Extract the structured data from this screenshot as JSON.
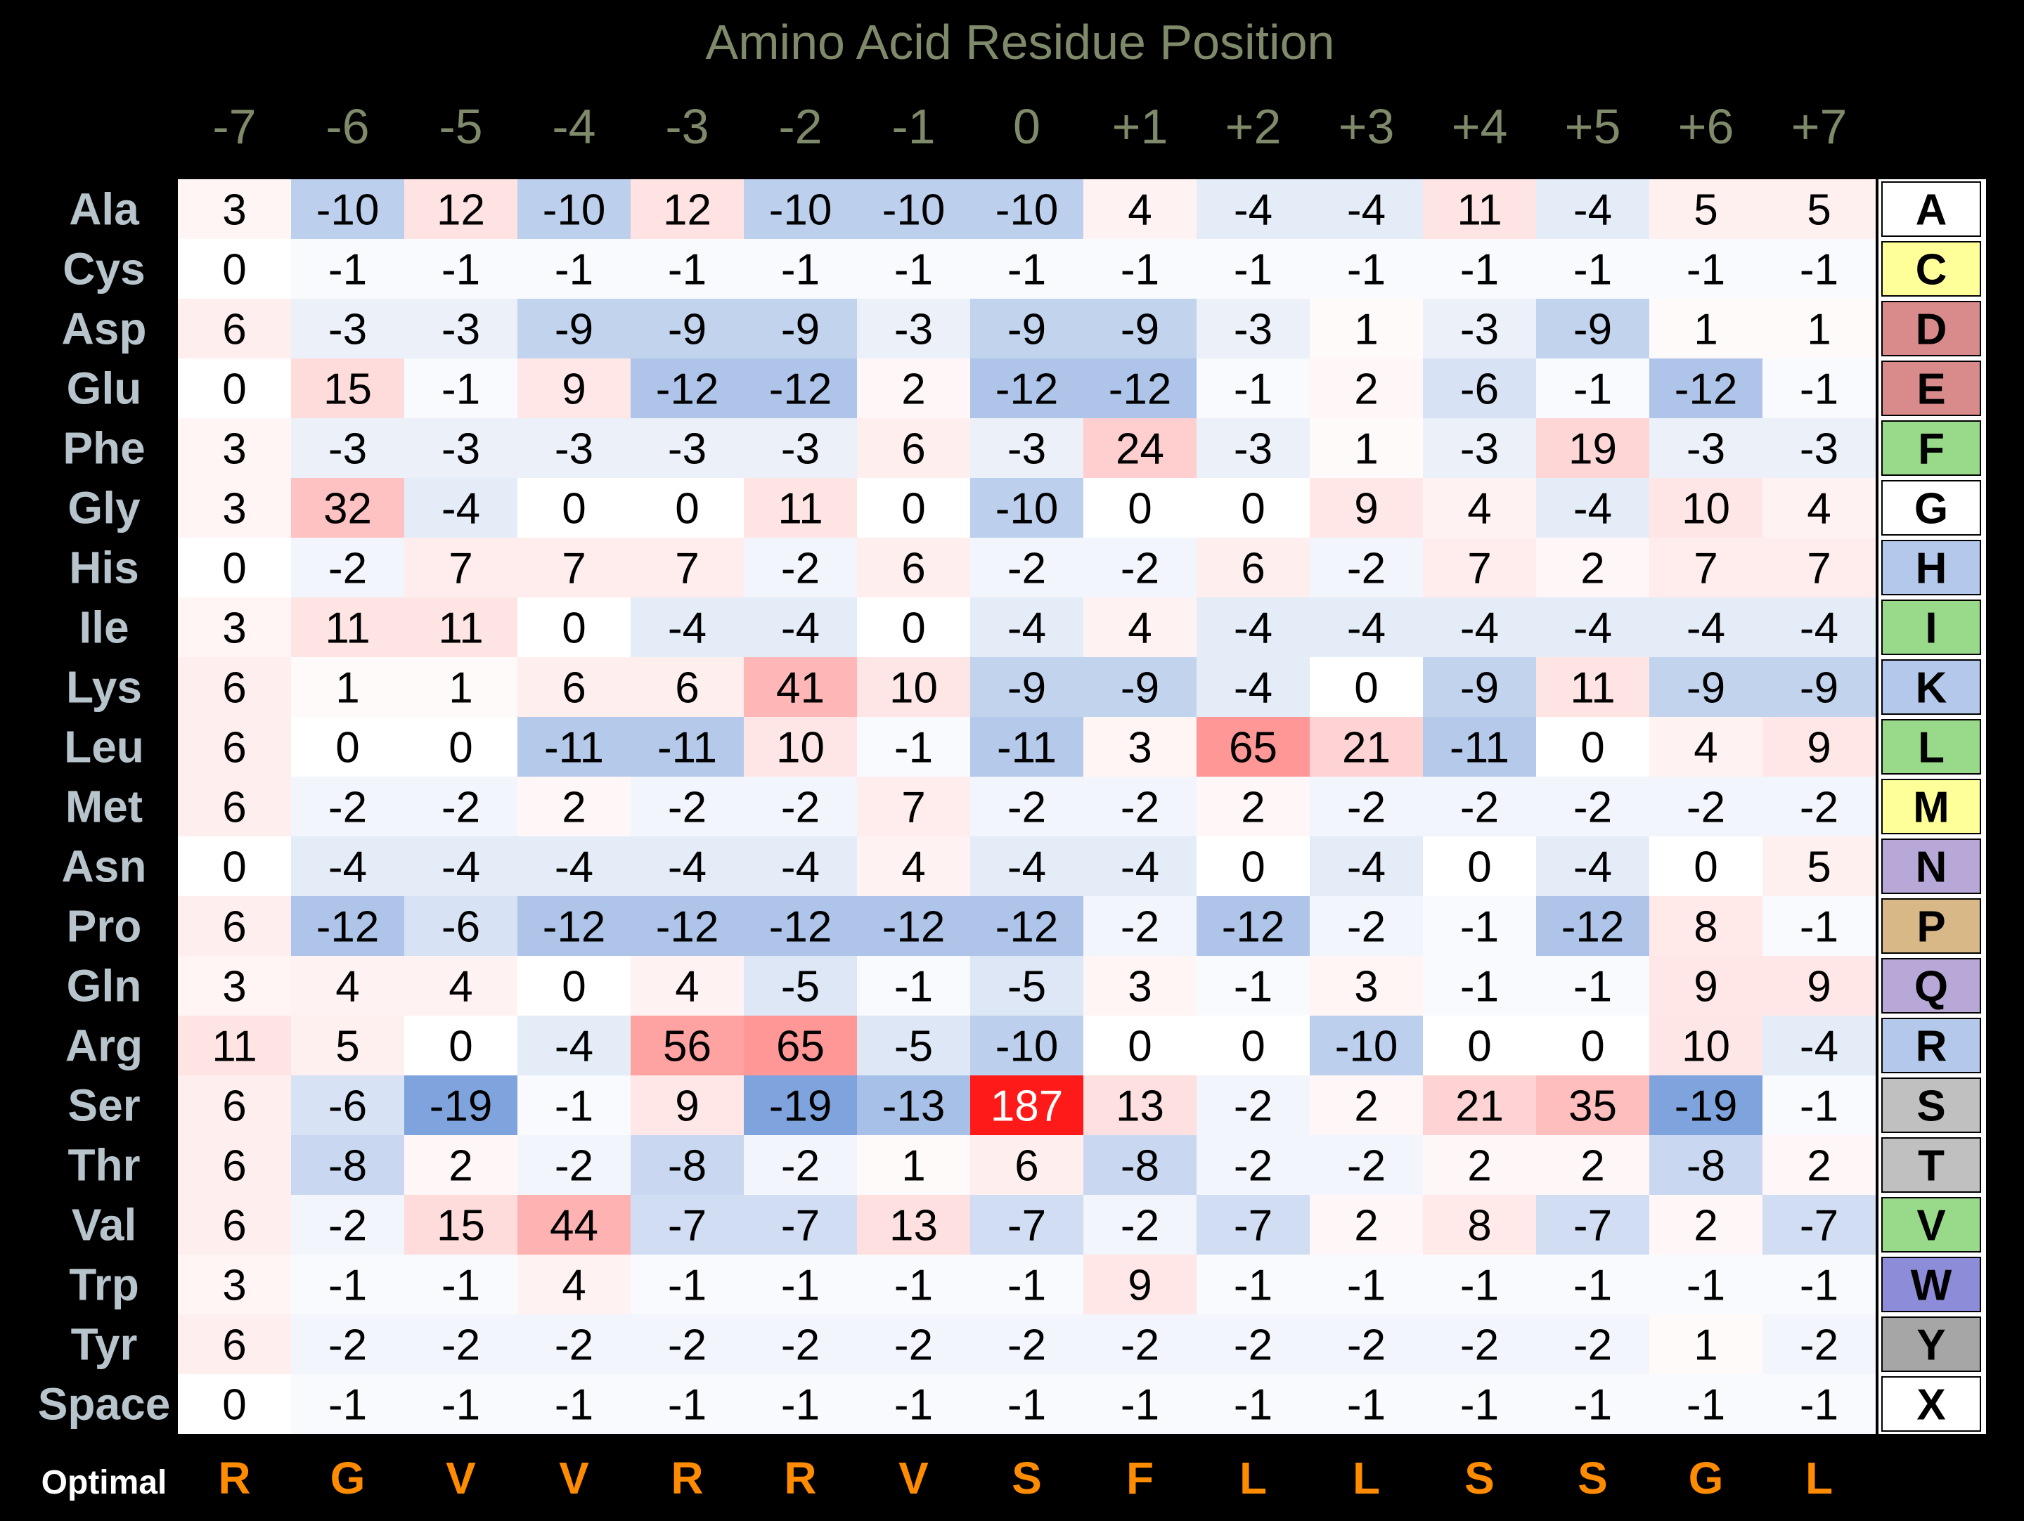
{
  "chart_data": {
    "type": "heatmap",
    "title": "Amino Acid Residue Position",
    "positions": [
      "-7",
      "-6",
      "-5",
      "-4",
      "-3",
      "-2",
      "-1",
      "0",
      "+1",
      "+2",
      "+3",
      "+4",
      "+5",
      "+6",
      "+7"
    ],
    "residues": [
      "Ala",
      "Cys",
      "Asp",
      "Glu",
      "Phe",
      "Gly",
      "His",
      "Ile",
      "Lys",
      "Leu",
      "Met",
      "Asn",
      "Pro",
      "Gln",
      "Arg",
      "Ser",
      "Thr",
      "Val",
      "Trp",
      "Tyr",
      "Space"
    ],
    "codes": [
      "A",
      "C",
      "D",
      "E",
      "F",
      "G",
      "H",
      "I",
      "K",
      "L",
      "M",
      "N",
      "P",
      "Q",
      "R",
      "S",
      "T",
      "V",
      "W",
      "Y",
      "X"
    ],
    "code_colors": [
      "#ffffff",
      "#ffff99",
      "#d98a8a",
      "#d98a8a",
      "#99d98a",
      "#ffffff",
      "#b3c8ea",
      "#99d98a",
      "#b3c8ea",
      "#99d98a",
      "#ffff99",
      "#b8a8d8",
      "#d9b888",
      "#b8a8d8",
      "#b3c8ea",
      "#c0c0c0",
      "#c0c0c0",
      "#99d98a",
      "#8c8cd9",
      "#a6a6a6",
      "#ffffff"
    ],
    "values": [
      [
        3,
        -10,
        12,
        -10,
        12,
        -10,
        -10,
        -10,
        4,
        -4,
        -4,
        11,
        -4,
        5,
        5
      ],
      [
        0,
        -1,
        -1,
        -1,
        -1,
        -1,
        -1,
        -1,
        -1,
        -1,
        -1,
        -1,
        -1,
        -1,
        -1
      ],
      [
        6,
        -3,
        -3,
        -9,
        -9,
        -9,
        -3,
        -9,
        -9,
        -3,
        1,
        -3,
        -9,
        1,
        1
      ],
      [
        0,
        15,
        -1,
        9,
        -12,
        -12,
        2,
        -12,
        -12,
        -1,
        2,
        -6,
        -1,
        -12,
        -1
      ],
      [
        3,
        -3,
        -3,
        -3,
        -3,
        -3,
        6,
        -3,
        24,
        -3,
        1,
        -3,
        19,
        -3,
        -3
      ],
      [
        3,
        32,
        -4,
        0,
        0,
        11,
        0,
        -10,
        0,
        0,
        9,
        4,
        -4,
        10,
        4
      ],
      [
        0,
        -2,
        7,
        7,
        7,
        -2,
        6,
        -2,
        -2,
        6,
        -2,
        7,
        2,
        7,
        7
      ],
      [
        3,
        11,
        11,
        0,
        -4,
        -4,
        0,
        -4,
        4,
        -4,
        -4,
        -4,
        -4,
        -4,
        -4
      ],
      [
        6,
        1,
        1,
        6,
        6,
        41,
        10,
        -9,
        -9,
        -4,
        0,
        -9,
        11,
        -9,
        -9
      ],
      [
        6,
        0,
        0,
        -11,
        -11,
        10,
        -1,
        -11,
        3,
        65,
        21,
        -11,
        0,
        4,
        9
      ],
      [
        6,
        -2,
        -2,
        2,
        -2,
        -2,
        7,
        -2,
        -2,
        2,
        -2,
        -2,
        -2,
        -2,
        -2
      ],
      [
        0,
        -4,
        -4,
        -4,
        -4,
        -4,
        4,
        -4,
        -4,
        0,
        -4,
        0,
        -4,
        0,
        5
      ],
      [
        6,
        -12,
        -6,
        -12,
        -12,
        -12,
        -12,
        -12,
        -2,
        -12,
        -2,
        -1,
        -12,
        8,
        -1
      ],
      [
        3,
        4,
        4,
        0,
        4,
        -5,
        -1,
        -5,
        3,
        -1,
        3,
        -1,
        -1,
        9,
        9
      ],
      [
        11,
        5,
        0,
        -4,
        56,
        65,
        -5,
        -10,
        0,
        0,
        -10,
        0,
        0,
        10,
        -4
      ],
      [
        6,
        -6,
        -19,
        -1,
        9,
        -19,
        -13,
        187,
        13,
        -2,
        2,
        21,
        35,
        -19,
        -1
      ],
      [
        6,
        -8,
        2,
        -2,
        -8,
        -2,
        1,
        6,
        -8,
        -2,
        -2,
        2,
        2,
        -8,
        2
      ],
      [
        6,
        -2,
        15,
        44,
        -7,
        -7,
        13,
        -7,
        -2,
        -7,
        2,
        8,
        -7,
        2,
        -7
      ],
      [
        3,
        -1,
        -1,
        4,
        -1,
        -1,
        -1,
        -1,
        9,
        -1,
        -1,
        -1,
        -1,
        -1,
        -1
      ],
      [
        6,
        -2,
        -2,
        -2,
        -2,
        -2,
        -2,
        -2,
        -2,
        -2,
        -2,
        -2,
        -2,
        1,
        -2
      ],
      [
        0,
        -1,
        -1,
        -1,
        -1,
        -1,
        -1,
        -1,
        -1,
        -1,
        -1,
        -1,
        -1,
        -1,
        -1
      ]
    ],
    "optimal_label": "Optimal",
    "optimal": [
      "R",
      "G",
      "V",
      "V",
      "R",
      "R",
      "V",
      "S",
      "F",
      "L",
      "L",
      "S",
      "S",
      "G",
      "L"
    ],
    "colors": {
      "title": "#7f8a6a",
      "residue_label": "#b8c4cc",
      "optimal_letter": "#ff8c00",
      "optimal_label": "#ffffff",
      "neg_max": "#7fa3dc",
      "pos_max": "#ff1a1a"
    }
  }
}
